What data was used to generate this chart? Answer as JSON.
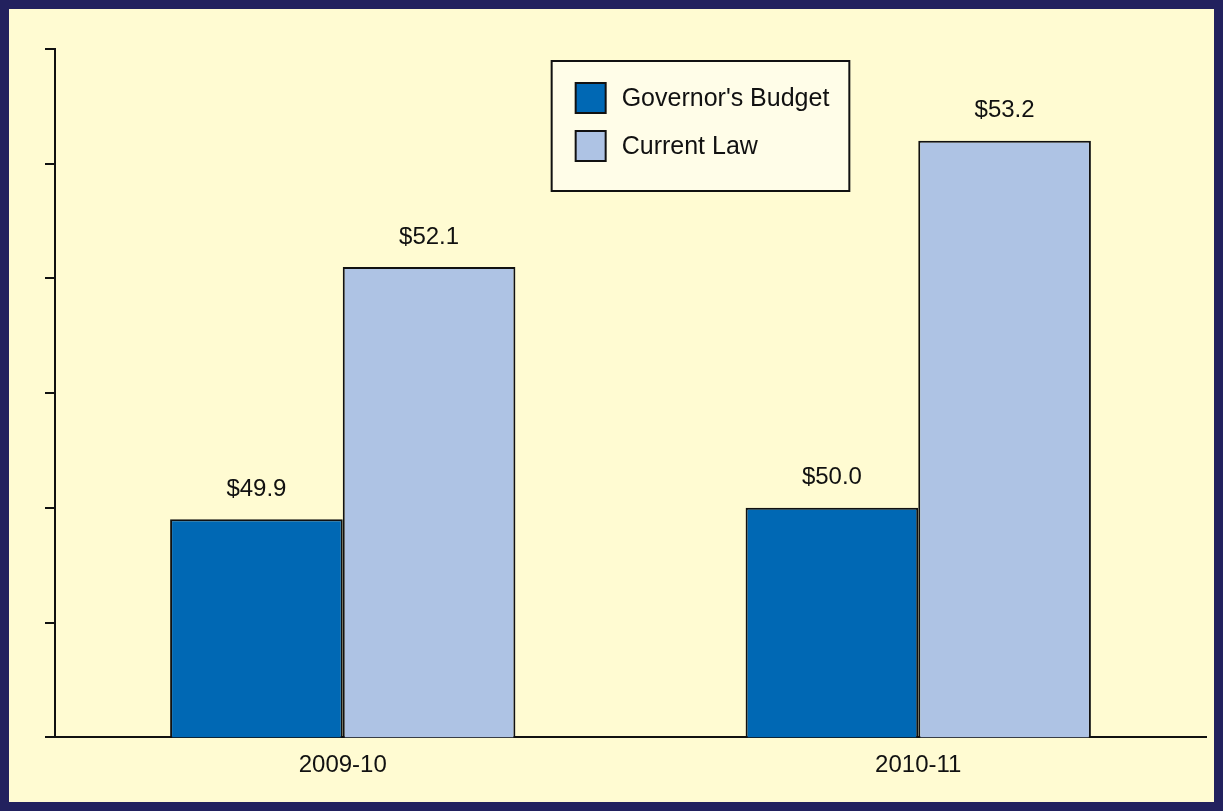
{
  "chart_data": {
    "type": "bar",
    "categories": [
      "2009-10",
      "2010-11"
    ],
    "series": [
      {
        "name": "Governor's Budget",
        "color": "#0068b4",
        "values": [
          49.9,
          50.0
        ],
        "value_labels": [
          "$49.9",
          "$50.0"
        ]
      },
      {
        "name": "Current Law",
        "color": "#aec3e4",
        "values": [
          52.1,
          53.2
        ],
        "value_labels": [
          "$52.1",
          "$53.2"
        ]
      }
    ],
    "ylim": [
      48,
      54
    ],
    "yticks": [
      {
        "value": 48,
        "label": null
      },
      {
        "value": 49,
        "label": null
      },
      {
        "value": 50,
        "label": null
      },
      {
        "value": 51,
        "label": null
      },
      {
        "value": 52,
        "label": null
      },
      {
        "value": 53,
        "label": null
      },
      {
        "value": 54,
        "label": null
      }
    ],
    "tick_labels": "x",
    "grid": false,
    "legend": "top"
  }
}
